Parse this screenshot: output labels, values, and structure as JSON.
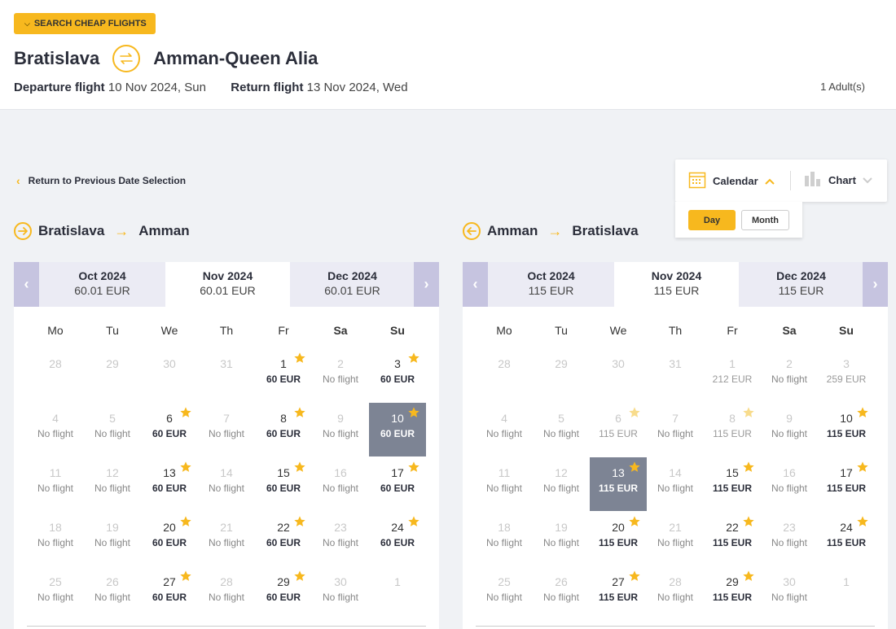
{
  "header": {
    "search_label": "SEARCH CHEAP FLIGHTS",
    "origin": "Bratislava",
    "destination": "Amman-Queen Alia",
    "departure_label": "Departure flight",
    "departure_value": "10 Nov 2024, Sun",
    "return_label": "Return flight",
    "return_value": "13 Nov 2024, Wed",
    "passengers": "1 Adult(s)"
  },
  "nav": {
    "back_label": "Return to Previous Date Selection"
  },
  "view": {
    "calendar_label": "Calendar",
    "chart_label": "Chart",
    "day_label": "Day",
    "month_label": "Month"
  },
  "colors": {
    "accent": "#f7b81e",
    "nav": "#c6c4e0",
    "selected": "#7d8494"
  },
  "weekdays": [
    "Mo",
    "Tu",
    "We",
    "Th",
    "Fr",
    "Sa",
    "Su"
  ],
  "outbound": {
    "from": "Bratislava",
    "to": "Amman",
    "months": [
      {
        "name": "Oct 2024",
        "price": "60.01 EUR"
      },
      {
        "name": "Nov 2024",
        "price": "60.01 EUR"
      },
      {
        "name": "Dec 2024",
        "price": "60.01 EUR"
      }
    ],
    "days": [
      {
        "d": "28",
        "p": "",
        "s": "muted"
      },
      {
        "d": "29",
        "p": "",
        "s": "muted"
      },
      {
        "d": "30",
        "p": "",
        "s": "muted"
      },
      {
        "d": "31",
        "p": "",
        "s": "muted"
      },
      {
        "d": "1",
        "p": "60 EUR",
        "s": "avail",
        "star": true
      },
      {
        "d": "2",
        "p": "No flight",
        "s": "nofl"
      },
      {
        "d": "3",
        "p": "60 EUR",
        "s": "avail",
        "star": true
      },
      {
        "d": "4",
        "p": "No flight",
        "s": "nofl"
      },
      {
        "d": "5",
        "p": "No flight",
        "s": "nofl"
      },
      {
        "d": "6",
        "p": "60 EUR",
        "s": "avail",
        "star": true
      },
      {
        "d": "7",
        "p": "No flight",
        "s": "nofl"
      },
      {
        "d": "8",
        "p": "60 EUR",
        "s": "avail",
        "star": true
      },
      {
        "d": "9",
        "p": "No flight",
        "s": "nofl"
      },
      {
        "d": "10",
        "p": "60 EUR",
        "s": "selected",
        "star": true
      },
      {
        "d": "11",
        "p": "No flight",
        "s": "nofl"
      },
      {
        "d": "12",
        "p": "No flight",
        "s": "nofl"
      },
      {
        "d": "13",
        "p": "60 EUR",
        "s": "avail",
        "star": true
      },
      {
        "d": "14",
        "p": "No flight",
        "s": "nofl"
      },
      {
        "d": "15",
        "p": "60 EUR",
        "s": "avail",
        "star": true
      },
      {
        "d": "16",
        "p": "No flight",
        "s": "nofl"
      },
      {
        "d": "17",
        "p": "60 EUR",
        "s": "avail",
        "star": true
      },
      {
        "d": "18",
        "p": "No flight",
        "s": "nofl"
      },
      {
        "d": "19",
        "p": "No flight",
        "s": "nofl"
      },
      {
        "d": "20",
        "p": "60 EUR",
        "s": "avail",
        "star": true
      },
      {
        "d": "21",
        "p": "No flight",
        "s": "nofl"
      },
      {
        "d": "22",
        "p": "60 EUR",
        "s": "avail",
        "star": true
      },
      {
        "d": "23",
        "p": "No flight",
        "s": "nofl"
      },
      {
        "d": "24",
        "p": "60 EUR",
        "s": "avail",
        "star": true
      },
      {
        "d": "25",
        "p": "No flight",
        "s": "nofl"
      },
      {
        "d": "26",
        "p": "No flight",
        "s": "nofl"
      },
      {
        "d": "27",
        "p": "60 EUR",
        "s": "avail",
        "star": true
      },
      {
        "d": "28",
        "p": "No flight",
        "s": "nofl"
      },
      {
        "d": "29",
        "p": "60 EUR",
        "s": "avail",
        "star": true
      },
      {
        "d": "30",
        "p": "No flight",
        "s": "nofl"
      },
      {
        "d": "1",
        "p": "",
        "s": "muted"
      }
    ]
  },
  "inbound": {
    "from": "Amman",
    "to": "Bratislava",
    "months": [
      {
        "name": "Oct 2024",
        "price": "115 EUR"
      },
      {
        "name": "Nov 2024",
        "price": "115 EUR"
      },
      {
        "name": "Dec 2024",
        "price": "115 EUR"
      }
    ],
    "days": [
      {
        "d": "28",
        "p": "",
        "s": "muted"
      },
      {
        "d": "29",
        "p": "",
        "s": "muted"
      },
      {
        "d": "30",
        "p": "",
        "s": "muted"
      },
      {
        "d": "31",
        "p": "",
        "s": "muted"
      },
      {
        "d": "1",
        "p": "212 EUR",
        "s": "muted"
      },
      {
        "d": "2",
        "p": "No flight",
        "s": "nofl"
      },
      {
        "d": "3",
        "p": "259 EUR",
        "s": "muted"
      },
      {
        "d": "4",
        "p": "No flight",
        "s": "nofl"
      },
      {
        "d": "5",
        "p": "No flight",
        "s": "nofl"
      },
      {
        "d": "6",
        "p": "115 EUR",
        "s": "muted",
        "star": true,
        "faint": true
      },
      {
        "d": "7",
        "p": "No flight",
        "s": "nofl"
      },
      {
        "d": "8",
        "p": "115 EUR",
        "s": "muted",
        "star": true,
        "faint": true
      },
      {
        "d": "9",
        "p": "No flight",
        "s": "nofl"
      },
      {
        "d": "10",
        "p": "115 EUR",
        "s": "avail",
        "star": true
      },
      {
        "d": "11",
        "p": "No flight",
        "s": "nofl"
      },
      {
        "d": "12",
        "p": "No flight",
        "s": "nofl"
      },
      {
        "d": "13",
        "p": "115 EUR",
        "s": "selected",
        "star": true
      },
      {
        "d": "14",
        "p": "No flight",
        "s": "nofl"
      },
      {
        "d": "15",
        "p": "115 EUR",
        "s": "avail",
        "star": true
      },
      {
        "d": "16",
        "p": "No flight",
        "s": "nofl"
      },
      {
        "d": "17",
        "p": "115 EUR",
        "s": "avail",
        "star": true
      },
      {
        "d": "18",
        "p": "No flight",
        "s": "nofl"
      },
      {
        "d": "19",
        "p": "No flight",
        "s": "nofl"
      },
      {
        "d": "20",
        "p": "115 EUR",
        "s": "avail",
        "star": true
      },
      {
        "d": "21",
        "p": "No flight",
        "s": "nofl"
      },
      {
        "d": "22",
        "p": "115 EUR",
        "s": "avail",
        "star": true
      },
      {
        "d": "23",
        "p": "No flight",
        "s": "nofl"
      },
      {
        "d": "24",
        "p": "115 EUR",
        "s": "avail",
        "star": true
      },
      {
        "d": "25",
        "p": "No flight",
        "s": "nofl"
      },
      {
        "d": "26",
        "p": "No flight",
        "s": "nofl"
      },
      {
        "d": "27",
        "p": "115 EUR",
        "s": "avail",
        "star": true
      },
      {
        "d": "28",
        "p": "No flight",
        "s": "nofl"
      },
      {
        "d": "29",
        "p": "115 EUR",
        "s": "avail",
        "star": true
      },
      {
        "d": "30",
        "p": "No flight",
        "s": "nofl"
      },
      {
        "d": "1",
        "p": "",
        "s": "muted"
      }
    ]
  }
}
